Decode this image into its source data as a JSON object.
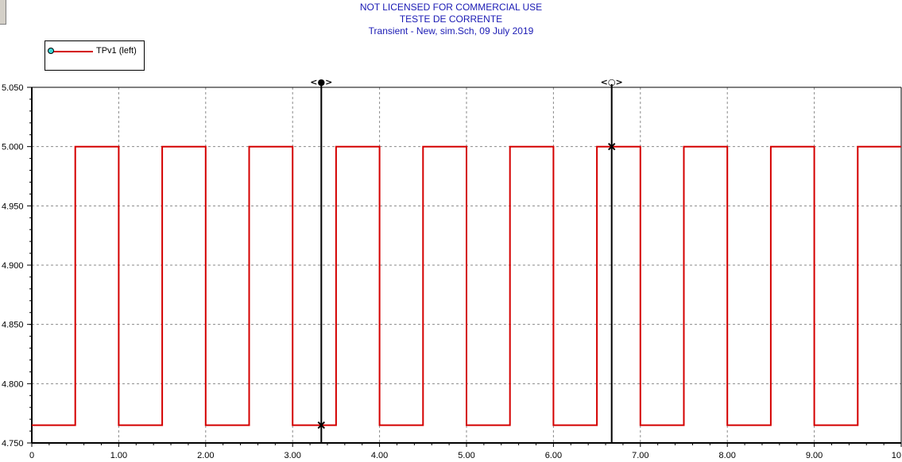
{
  "header": {
    "line1": "NOT LICENSED FOR COMMERCIAL USE",
    "line2": "TESTE DE CORRENTE",
    "line3": "Transient - New,    sim.Sch,   09 July 2019"
  },
  "legend": {
    "label": "TPv1 (left)",
    "line_color": "#d40000",
    "marker_color": "#39d6d6",
    "marker_icon": "circle-marker-icon"
  },
  "cursors": {
    "cursor1_label": "<●>",
    "cursor2_label": "<○>",
    "cursor1_x": 3.33,
    "cursor2_x": 6.67
  },
  "chart_data": {
    "type": "line",
    "title": "TESTE DE CORRENTE",
    "xlabel": "",
    "ylabel": "",
    "xlim": [
      0,
      10
    ],
    "ylim": [
      4.75,
      5.05
    ],
    "grid": true,
    "x_ticks": [
      "0",
      "1.00",
      "2.00",
      "3.00",
      "4.00",
      "5.00",
      "6.00",
      "7.00",
      "8.00",
      "9.00",
      "10"
    ],
    "x_tick_values": [
      0,
      1,
      2,
      3,
      4,
      5,
      6,
      7,
      8,
      9,
      10
    ],
    "y_ticks": [
      "4.750",
      "4.800",
      "4.850",
      "4.900",
      "4.950",
      "5.000",
      "5.050"
    ],
    "y_tick_values": [
      4.75,
      4.8,
      4.85,
      4.9,
      4.95,
      5.0,
      5.05
    ],
    "series": [
      {
        "name": "TPv1 (left)",
        "color": "#d40000",
        "step": true,
        "x": [
          0,
          0.5,
          0.5,
          1.0,
          1.0,
          1.5,
          1.5,
          2.0,
          2.0,
          2.5,
          2.5,
          3.0,
          3.0,
          3.5,
          3.5,
          4.0,
          4.0,
          4.5,
          4.5,
          5.0,
          5.0,
          5.5,
          5.5,
          6.0,
          6.0,
          6.5,
          6.5,
          7.0,
          7.0,
          7.5,
          7.5,
          8.0,
          8.0,
          8.5,
          8.5,
          9.0,
          9.0,
          9.5,
          9.5,
          10.0
        ],
        "y": [
          4.765,
          4.765,
          5.0,
          5.0,
          4.765,
          4.765,
          5.0,
          5.0,
          4.765,
          4.765,
          5.0,
          5.0,
          4.765,
          4.765,
          5.0,
          5.0,
          4.765,
          4.765,
          5.0,
          5.0,
          4.765,
          4.765,
          5.0,
          5.0,
          4.765,
          4.765,
          5.0,
          5.0,
          4.765,
          4.765,
          5.0,
          5.0,
          4.765,
          4.765,
          5.0,
          5.0,
          4.765,
          4.765,
          5.0,
          5.0
        ]
      }
    ],
    "cursor_points": [
      {
        "x": 3.33,
        "y": 4.765
      },
      {
        "x": 6.67,
        "y": 5.0
      }
    ]
  }
}
